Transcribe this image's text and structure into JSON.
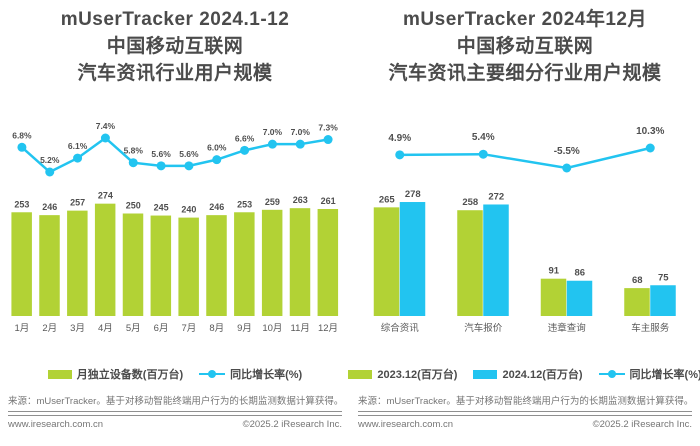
{
  "panels": [
    {
      "title_lines": [
        "mUserTracker 2024.1-12",
        "中国移动互联网",
        "汽车资讯行业用户规模"
      ],
      "legend": [
        {
          "label": "月独立设备数(百万台)",
          "swatch": "bar",
          "color": "#b2d235"
        },
        {
          "label": "同比增长率(%)",
          "swatch": "line",
          "color": "#22c4f0"
        }
      ],
      "footnote": "来源：mUserTracker。基于对移动智能终端用户行为的长期监测数据计算获得。",
      "footer_left": "www.iresearch.com.cn",
      "footer_right": "©2025.2 iResearch Inc."
    },
    {
      "title_lines": [
        "mUserTracker 2024年12月",
        "中国移动互联网",
        "汽车资讯主要细分行业用户规模"
      ],
      "legend": [
        {
          "label": "2023.12(百万台)",
          "swatch": "bar",
          "color": "#b2d235"
        },
        {
          "label": "2024.12(百万台)",
          "swatch": "bar",
          "color": "#22c4f0"
        },
        {
          "label": "同比增长率(%)",
          "swatch": "line",
          "color": "#22c4f0"
        }
      ],
      "footnote": "来源：mUserTracker。基于对移动智能终端用户行为的长期监测数据计算获得。",
      "footer_left": "www.iresearch.com.cn",
      "footer_right": "©2025.2 iResearch Inc."
    }
  ],
  "chart_data": [
    {
      "type": "bar",
      "title": "mUserTracker 2024.1-12 中国移动互联网汽车资讯行业用户规模",
      "categories": [
        "1月",
        "2月",
        "3月",
        "4月",
        "5月",
        "6月",
        "7月",
        "8月",
        "9月",
        "10月",
        "11月",
        "12月"
      ],
      "series": [
        {
          "name": "月独立设备数(百万台)",
          "type": "bar",
          "color": "#b2d235",
          "values": [
            253,
            246,
            257,
            274,
            250,
            245,
            240,
            246,
            253,
            259,
            263,
            261
          ]
        },
        {
          "name": "同比增长率(%)",
          "type": "line",
          "color": "#22c4f0",
          "unit": "%",
          "values": [
            6.8,
            5.2,
            6.1,
            7.4,
            5.8,
            5.6,
            5.6,
            6.0,
            6.6,
            7.0,
            7.0,
            7.3
          ]
        }
      ],
      "xlabel": "",
      "ylabel": "月独立设备数(百万台)",
      "grid": false,
      "legend_position": "bottom"
    },
    {
      "type": "bar",
      "title": "mUserTracker 2024年12月 中国移动互联网汽车资讯主要细分行业用户规模",
      "categories": [
        "综合资讯",
        "汽车报价",
        "违章查询",
        "车主服务"
      ],
      "series": [
        {
          "name": "2023.12(百万台)",
          "type": "bar",
          "color": "#b2d235",
          "values": [
            265,
            258,
            91,
            68
          ]
        },
        {
          "name": "2024.12(百万台)",
          "type": "bar",
          "color": "#22c4f0",
          "values": [
            278,
            272,
            86,
            75
          ]
        },
        {
          "name": "同比增长率(%)",
          "type": "line",
          "color": "#22c4f0",
          "unit": "%",
          "values": [
            4.9,
            5.4,
            -5.5,
            10.3
          ]
        }
      ],
      "xlabel": "",
      "ylabel": "独立设备数(百万台)",
      "grid": false,
      "legend_position": "bottom"
    }
  ]
}
